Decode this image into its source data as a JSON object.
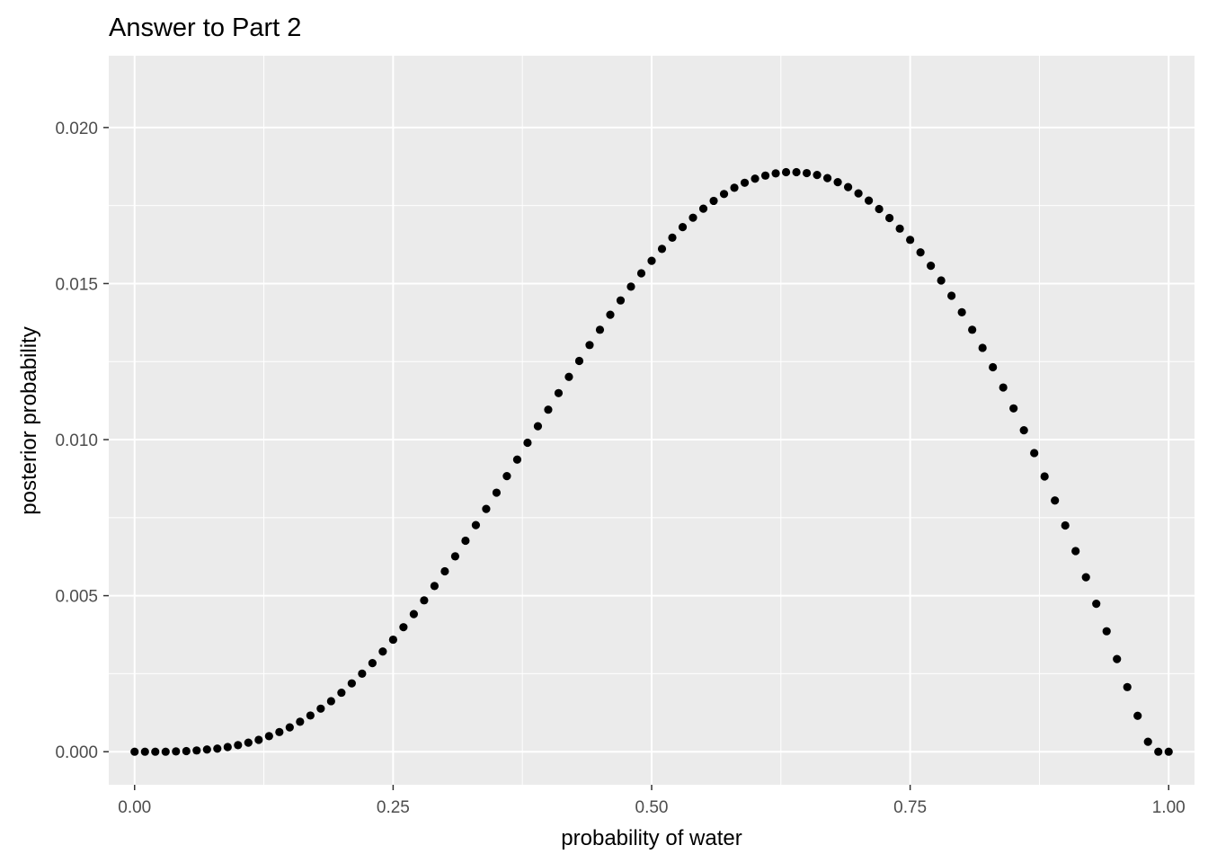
{
  "chart_data": {
    "type": "scatter",
    "title": "Answer to Part 2",
    "xlabel": "probability of water",
    "ylabel": "posterior probability",
    "xlim": [
      -0.025,
      1.025
    ],
    "ylim": [
      -0.00106,
      0.0223
    ],
    "x_ticks": [
      0.0,
      0.25,
      0.5,
      0.75,
      1.0
    ],
    "x_tick_labels": [
      "0.00",
      "0.25",
      "0.50",
      "0.75",
      "1.00"
    ],
    "y_ticks": [
      0.0,
      0.005,
      0.01,
      0.015,
      0.02
    ],
    "y_tick_labels": [
      "0.000",
      "0.005",
      "0.010",
      "0.015",
      "0.020"
    ],
    "grid": true,
    "background": "#ebebeb",
    "grid_color": "#ffffff",
    "point_color": "#000000",
    "series": [
      {
        "x": [
          0.0,
          0.01,
          0.02,
          0.03,
          0.04,
          0.05,
          0.06,
          0.07,
          0.08,
          0.09,
          0.1,
          0.11,
          0.12,
          0.13,
          0.14,
          0.15,
          0.16,
          0.17,
          0.18,
          0.19,
          0.2,
          0.21,
          0.22,
          0.23,
          0.24,
          0.25,
          0.26,
          0.27,
          0.28,
          0.29,
          0.3,
          0.31,
          0.32,
          0.33,
          0.34,
          0.35,
          0.36,
          0.37,
          0.38,
          0.39,
          0.4,
          0.41,
          0.42,
          0.43,
          0.44,
          0.45,
          0.46,
          0.47,
          0.48,
          0.49,
          0.5,
          0.51,
          0.52,
          0.53,
          0.54,
          0.55,
          0.56,
          0.57,
          0.58,
          0.59,
          0.6,
          0.61,
          0.62,
          0.63,
          0.64,
          0.65,
          0.66,
          0.67,
          0.68,
          0.69,
          0.7,
          0.71,
          0.72,
          0.73,
          0.74,
          0.75,
          0.76,
          0.77,
          0.78,
          0.79,
          0.8,
          0.81,
          0.82,
          0.83,
          0.84,
          0.85,
          0.86,
          0.87,
          0.88,
          0.89,
          0.9,
          0.91,
          0.92,
          0.93,
          0.94,
          0.95,
          0.96,
          0.97,
          0.98,
          0.99,
          1.0
        ],
        "y": [
          0.0,
          0.0,
          0.0,
          0.0,
          1e-05,
          2e-05,
          4e-05,
          7e-05,
          0.0001,
          0.00015,
          0.00021,
          0.00029,
          0.00038,
          0.0005,
          0.00063,
          0.00078,
          0.00096,
          0.00116,
          0.00138,
          0.00162,
          0.00189,
          0.00219,
          0.0025,
          0.00284,
          0.00321,
          0.00359,
          0.00399,
          0.00441,
          0.00485,
          0.00531,
          0.00578,
          0.00626,
          0.00676,
          0.00726,
          0.00778,
          0.0083,
          0.00883,
          0.00936,
          0.0099,
          0.01043,
          0.01096,
          0.01149,
          0.01201,
          0.01252,
          0.01303,
          0.01352,
          0.014,
          0.01446,
          0.0149,
          0.01533,
          0.01573,
          0.01611,
          0.01647,
          0.01681,
          0.01711,
          0.0174,
          0.01765,
          0.01787,
          0.01807,
          0.01823,
          0.01836,
          0.01846,
          0.01853,
          0.01857,
          0.01857,
          0.01854,
          0.01848,
          0.01838,
          0.01825,
          0.01809,
          0.01789,
          0.01766,
          0.01739,
          0.0171,
          0.01676,
          0.0164,
          0.016,
          0.01557,
          0.0151,
          0.01461,
          0.01408,
          0.01352,
          0.01294,
          0.01232,
          0.01167,
          0.011,
          0.0103,
          0.00957,
          0.00882,
          0.00805,
          0.00725,
          0.00643,
          0.00559,
          0.00474,
          0.00386,
          0.00297,
          0.00207,
          0.00115,
          0.00032,
          0.0,
          0.0
        ]
      }
    ]
  }
}
